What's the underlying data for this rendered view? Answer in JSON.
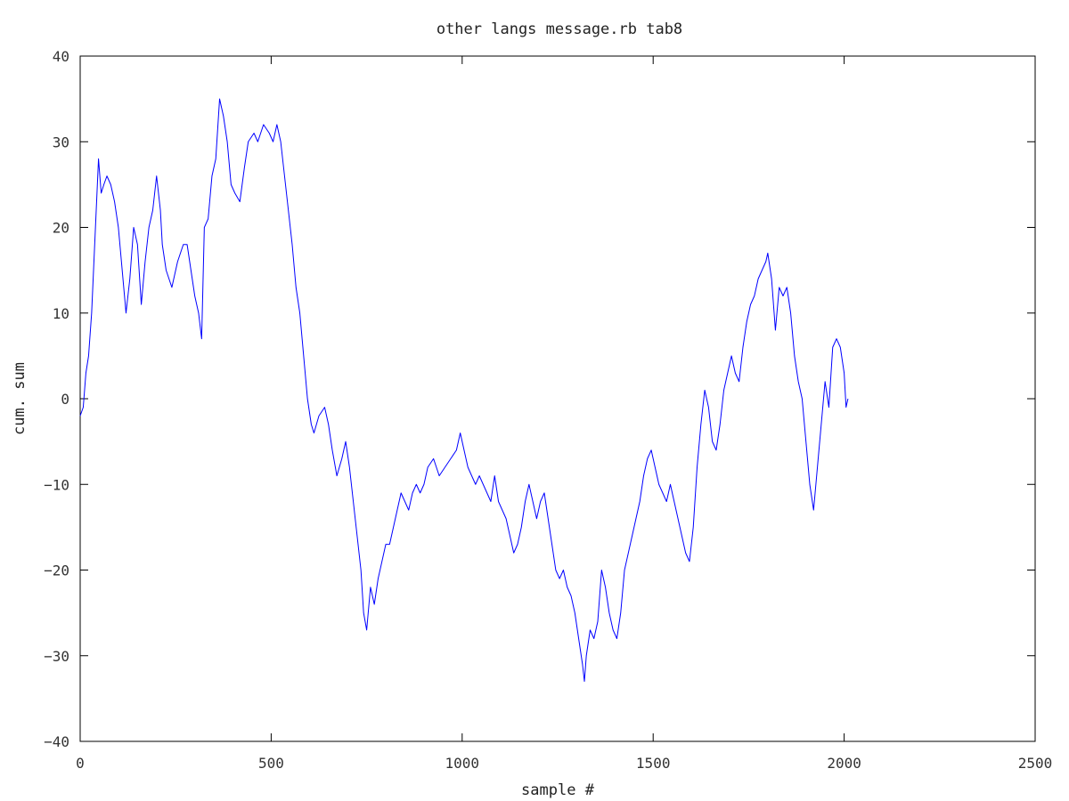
{
  "chart_data": {
    "type": "line",
    "title": "other langs message.rb tab8",
    "xlabel": "sample #",
    "ylabel": "cum. sum",
    "xlim": [
      0,
      2500
    ],
    "ylim": [
      -40,
      40
    ],
    "xticks": [
      0,
      500,
      1000,
      1500,
      2000,
      2500
    ],
    "yticks": [
      -40,
      -30,
      -20,
      -10,
      0,
      10,
      20,
      30,
      40
    ],
    "grid": false,
    "legend": "none",
    "series": [
      {
        "color": "#0000ff",
        "x": [
          0,
          8,
          15,
          22,
          30,
          40,
          48,
          55,
          62,
          70,
          80,
          90,
          100,
          110,
          120,
          130,
          140,
          150,
          160,
          170,
          180,
          190,
          200,
          210,
          215,
          225,
          240,
          255,
          270,
          280,
          290,
          300,
          310,
          318,
          325,
          335,
          345,
          355,
          365,
          375,
          385,
          395,
          405,
          418,
          430,
          440,
          455,
          465,
          480,
          495,
          505,
          515,
          525,
          535,
          545,
          555,
          565,
          575,
          585,
          595,
          605,
          612,
          625,
          640,
          650,
          660,
          672,
          685,
          695,
          705,
          715,
          725,
          735,
          742,
          750,
          760,
          770,
          780,
          790,
          800,
          810,
          820,
          830,
          840,
          850,
          860,
          870,
          880,
          890,
          900,
          910,
          925,
          940,
          955,
          970,
          985,
          995,
          1005,
          1015,
          1025,
          1035,
          1045,
          1055,
          1065,
          1075,
          1085,
          1095,
          1105,
          1115,
          1125,
          1135,
          1145,
          1155,
          1165,
          1175,
          1185,
          1195,
          1205,
          1215,
          1225,
          1235,
          1245,
          1255,
          1265,
          1275,
          1285,
          1295,
          1305,
          1315,
          1320,
          1325,
          1335,
          1345,
          1355,
          1365,
          1375,
          1385,
          1395,
          1405,
          1415,
          1425,
          1435,
          1445,
          1455,
          1465,
          1475,
          1485,
          1495,
          1505,
          1515,
          1525,
          1535,
          1545,
          1555,
          1565,
          1575,
          1585,
          1595,
          1605,
          1615,
          1625,
          1635,
          1645,
          1655,
          1665,
          1675,
          1685,
          1695,
          1705,
          1715,
          1725,
          1735,
          1745,
          1755,
          1765,
          1775,
          1785,
          1795,
          1800,
          1810,
          1820,
          1830,
          1840,
          1850,
          1860,
          1870,
          1880,
          1890,
          1900,
          1910,
          1920,
          1930,
          1940,
          1950,
          1960,
          1970,
          1980,
          1990,
          2000,
          2005,
          2010
        ],
        "y": [
          -2,
          -1,
          3,
          5,
          10,
          20,
          28,
          24,
          25,
          26,
          25,
          23,
          20,
          15,
          10,
          14,
          20,
          18,
          11,
          16,
          20,
          22,
          26,
          22,
          18,
          15,
          13,
          16,
          18,
          18,
          15,
          12,
          10,
          7,
          20,
          21,
          26,
          28,
          35,
          33,
          30,
          25,
          24,
          23,
          27,
          30,
          31,
          30,
          32,
          31,
          30,
          32,
          30,
          26,
          22,
          18,
          13,
          10,
          5,
          0,
          -3,
          -4,
          -2,
          -1,
          -3,
          -6,
          -9,
          -7,
          -5,
          -8,
          -12,
          -16,
          -20,
          -25,
          -27,
          -22,
          -24,
          -21,
          -19,
          -17,
          -17,
          -15,
          -13,
          -11,
          -12,
          -13,
          -11,
          -10,
          -11,
          -10,
          -8,
          -7,
          -9,
          -8,
          -7,
          -6,
          -4,
          -6,
          -8,
          -9,
          -10,
          -9,
          -10,
          -11,
          -12,
          -9,
          -12,
          -13,
          -14,
          -16,
          -18,
          -17,
          -15,
          -12,
          -10,
          -12,
          -14,
          -12,
          -11,
          -14,
          -17,
          -20,
          -21,
          -20,
          -22,
          -23,
          -25,
          -28,
          -31,
          -33,
          -30,
          -27,
          -28,
          -26,
          -20,
          -22,
          -25,
          -27,
          -28,
          -25,
          -20,
          -18,
          -16,
          -14,
          -12,
          -9,
          -7,
          -6,
          -8,
          -10,
          -11,
          -12,
          -10,
          -12,
          -14,
          -16,
          -18,
          -19,
          -15,
          -8,
          -3,
          1,
          -1,
          -5,
          -6,
          -3,
          1,
          3,
          5,
          3,
          2,
          6,
          9,
          11,
          12,
          14,
          15,
          16,
          17,
          14,
          8,
          13,
          12,
          13,
          10,
          5,
          2,
          0,
          -5,
          -10,
          -13,
          -8,
          -3,
          2,
          -1,
          6,
          7,
          6,
          3,
          -1,
          0
        ]
      }
    ]
  }
}
